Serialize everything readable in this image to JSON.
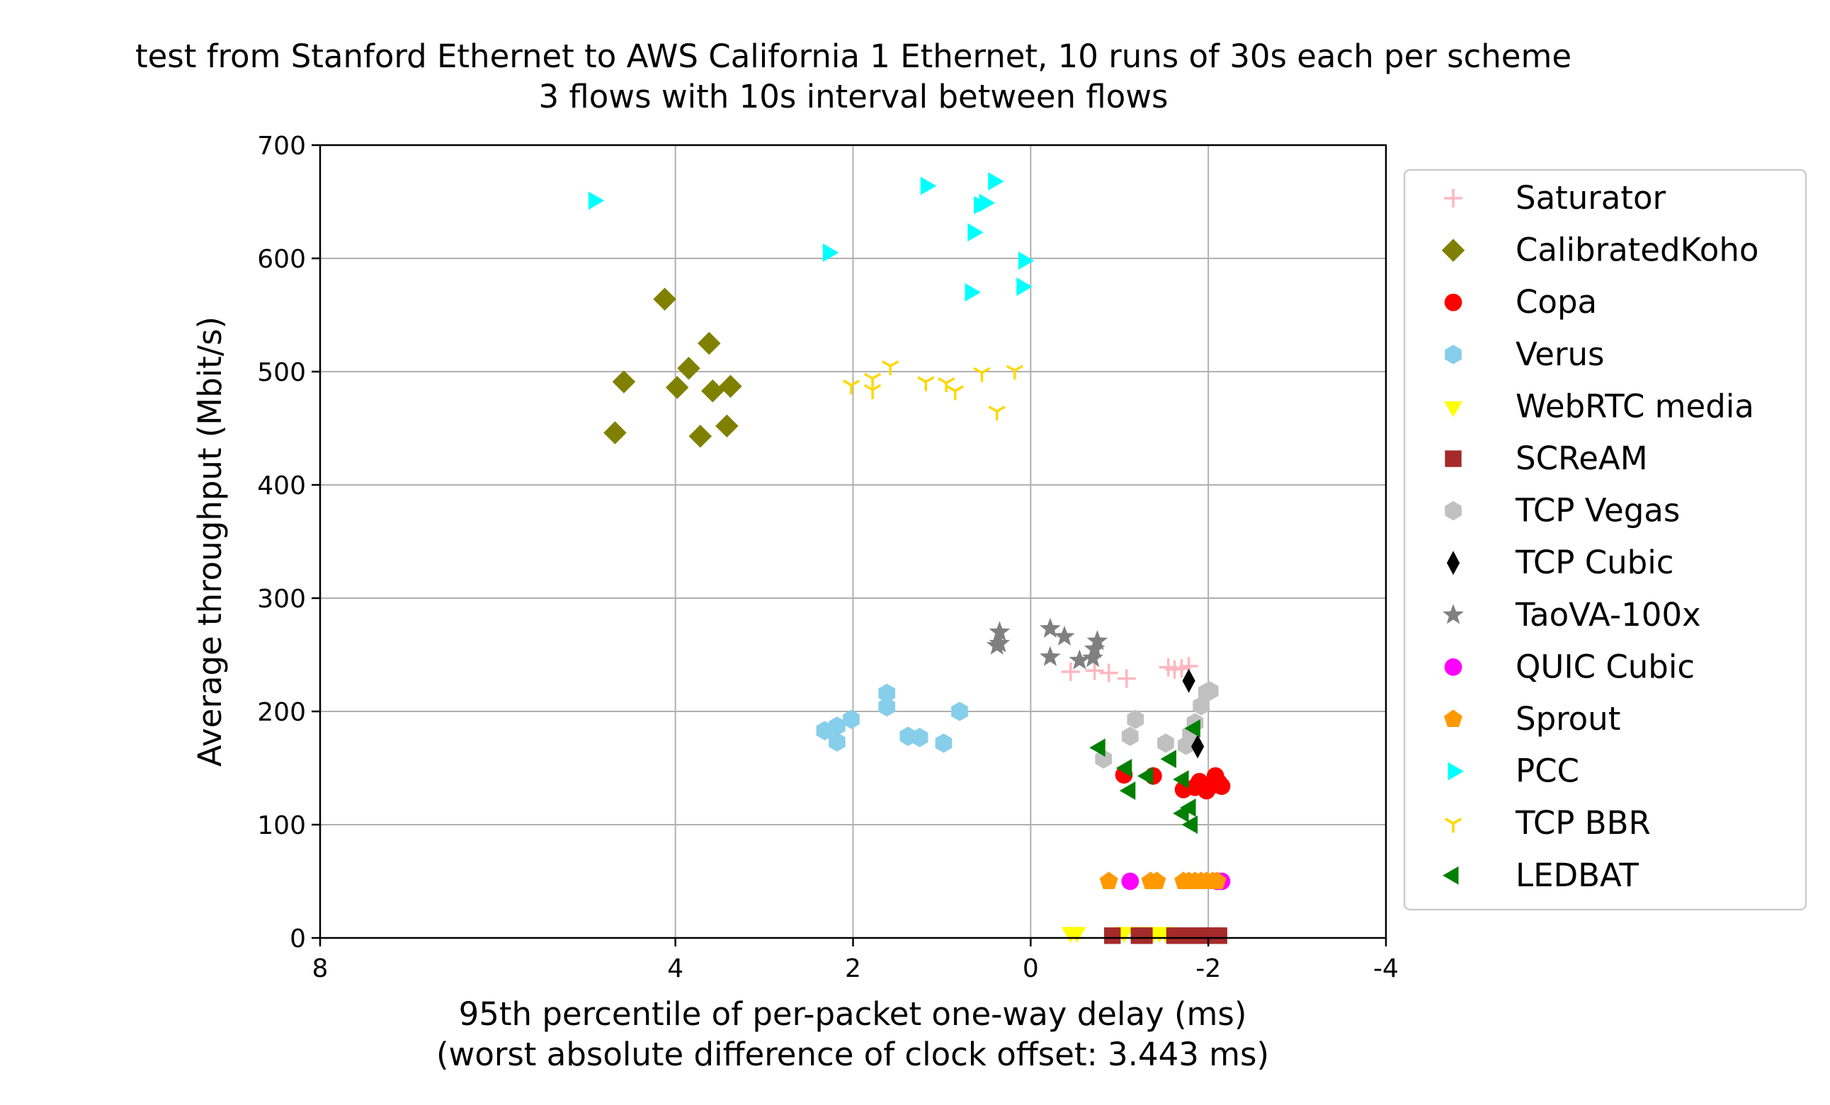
{
  "chart_data": {
    "type": "scatter",
    "title": "test from Stanford Ethernet to AWS California 1 Ethernet, 10 runs of 30s each per scheme",
    "subtitle": "3 flows with 10s interval between flows",
    "xlabel": "95th percentile of per-packet one-way delay (ms)",
    "xlabel2": "(worst absolute difference of clock offset: 3.443 ms)",
    "ylabel": "Average throughput (Mbit/s)",
    "xlim": [
      8,
      -4
    ],
    "ylim": [
      0,
      700
    ],
    "x_ticks": [
      "8",
      "4",
      "2",
      "0",
      "-2",
      "-4"
    ],
    "x_tick_values": [
      8,
      4,
      2,
      0,
      -2,
      -4
    ],
    "y_ticks": [
      "0",
      "100",
      "200",
      "300",
      "400",
      "500",
      "600",
      "700"
    ],
    "y_tick_values": [
      0,
      100,
      200,
      300,
      400,
      500,
      600,
      700
    ],
    "grid": true,
    "legend_position": "right",
    "series": [
      {
        "name": "Saturator",
        "marker": "plus",
        "color": "#ffb6c1",
        "points": [
          [
            -0.45,
            235
          ],
          [
            -0.72,
            236
          ],
          [
            -0.88,
            234
          ],
          [
            -1.08,
            229
          ],
          [
            -1.55,
            239
          ],
          [
            -1.62,
            237
          ],
          [
            -1.7,
            238
          ],
          [
            -1.78,
            240
          ]
        ]
      },
      {
        "name": "CalibratedKoho",
        "marker": "diamond",
        "color": "#808000",
        "points": [
          [
            4.12,
            564
          ],
          [
            4.58,
            491
          ],
          [
            3.85,
            503
          ],
          [
            3.98,
            486
          ],
          [
            3.62,
            525
          ],
          [
            3.58,
            483
          ],
          [
            3.38,
            487
          ],
          [
            4.68,
            446
          ],
          [
            3.72,
            443
          ],
          [
            3.42,
            452
          ]
        ]
      },
      {
        "name": "Copa",
        "marker": "circle",
        "color": "#ff0000",
        "points": [
          [
            -1.05,
            144
          ],
          [
            -1.38,
            143
          ],
          [
            -1.72,
            131
          ],
          [
            -1.85,
            133
          ],
          [
            -1.9,
            138
          ],
          [
            -1.98,
            130
          ],
          [
            -2.05,
            135
          ],
          [
            -2.08,
            143
          ],
          [
            -2.12,
            137
          ],
          [
            -2.15,
            134
          ]
        ]
      },
      {
        "name": "Verus",
        "marker": "hexagon",
        "color": "#87ceeb",
        "points": [
          [
            2.32,
            183
          ],
          [
            2.18,
            187
          ],
          [
            2.18,
            173
          ],
          [
            2.02,
            193
          ],
          [
            1.62,
            216
          ],
          [
            1.62,
            204
          ],
          [
            1.38,
            178
          ],
          [
            1.25,
            177
          ],
          [
            0.98,
            172
          ],
          [
            0.8,
            200
          ]
        ]
      },
      {
        "name": "WebRTC media",
        "marker": "triangle-down",
        "color": "#ffff00",
        "points": [
          [
            -0.45,
            5
          ],
          [
            -0.52,
            5
          ],
          [
            -1.05,
            5
          ],
          [
            -1.18,
            5
          ],
          [
            -1.25,
            5
          ],
          [
            -1.32,
            5
          ],
          [
            -1.38,
            5
          ],
          [
            -1.45,
            5
          ],
          [
            -1.52,
            5
          ]
        ]
      },
      {
        "name": "SCReAM",
        "marker": "square",
        "color": "#a52a2a",
        "points": [
          [
            -0.92,
            2
          ],
          [
            -1.22,
            2
          ],
          [
            -1.28,
            2
          ],
          [
            -1.62,
            2
          ],
          [
            -1.72,
            2
          ],
          [
            -1.82,
            2
          ],
          [
            -1.9,
            2
          ],
          [
            -1.98,
            2
          ],
          [
            -2.05,
            2
          ],
          [
            -2.12,
            2
          ]
        ]
      },
      {
        "name": "TCP Vegas",
        "marker": "hexagon",
        "color": "#c0c0c0",
        "points": [
          [
            -0.82,
            158
          ],
          [
            -1.12,
            178
          ],
          [
            -1.18,
            193
          ],
          [
            -1.52,
            172
          ],
          [
            -1.75,
            170
          ],
          [
            -1.85,
            190
          ],
          [
            -1.92,
            205
          ],
          [
            -1.98,
            217
          ],
          [
            -2.02,
            218
          ],
          [
            -1.8,
            180
          ]
        ]
      },
      {
        "name": "TCP Cubic",
        "marker": "thin-diamond",
        "color": "#000000",
        "points": [
          [
            -1.78,
            227
          ],
          [
            -1.88,
            169
          ]
        ]
      },
      {
        "name": "TaoVA-100x",
        "marker": "star",
        "color": "#808080",
        "points": [
          [
            0.38,
            258
          ],
          [
            0.35,
            270
          ],
          [
            -0.22,
            273
          ],
          [
            -0.22,
            248
          ],
          [
            -0.38,
            266
          ],
          [
            -0.55,
            245
          ],
          [
            -0.7,
            247
          ],
          [
            -0.72,
            255
          ],
          [
            -0.75,
            262
          ],
          [
            0.35,
            260
          ]
        ]
      },
      {
        "name": "QUIC Cubic",
        "marker": "circle",
        "color": "#ff00ff",
        "points": [
          [
            -1.12,
            50
          ],
          [
            -2.1,
            50
          ],
          [
            -2.15,
            50
          ]
        ]
      },
      {
        "name": "Sprout",
        "marker": "pentagon",
        "color": "#ff9900",
        "points": [
          [
            -0.88,
            50
          ],
          [
            -1.35,
            50
          ],
          [
            -1.42,
            50
          ],
          [
            -1.72,
            50
          ],
          [
            -1.78,
            50
          ],
          [
            -1.85,
            50
          ],
          [
            -1.92,
            50
          ],
          [
            -1.98,
            50
          ],
          [
            -2.05,
            50
          ],
          [
            -2.1,
            50
          ]
        ]
      },
      {
        "name": "PCC",
        "marker": "triangle-right",
        "color": "#00ffff",
        "points": [
          [
            4.92,
            651
          ],
          [
            2.28,
            605
          ],
          [
            1.18,
            664
          ],
          [
            0.42,
            668
          ],
          [
            0.52,
            649
          ],
          [
            0.58,
            647
          ],
          [
            0.65,
            623
          ],
          [
            0.08,
            598
          ],
          [
            0.68,
            570
          ],
          [
            0.1,
            575
          ]
        ]
      },
      {
        "name": "TCP BBR",
        "marker": "tri-down",
        "color": "#ffd700",
        "points": [
          [
            2.02,
            488
          ],
          [
            1.78,
            494
          ],
          [
            1.78,
            484
          ],
          [
            1.58,
            505
          ],
          [
            1.18,
            491
          ],
          [
            0.95,
            490
          ],
          [
            0.85,
            483
          ],
          [
            0.55,
            499
          ],
          [
            0.38,
            465
          ],
          [
            0.18,
            501
          ]
        ]
      },
      {
        "name": "LEDBAT",
        "marker": "triangle-left",
        "color": "#008000",
        "points": [
          [
            -0.78,
            168
          ],
          [
            -1.08,
            150
          ],
          [
            -1.12,
            130
          ],
          [
            -1.32,
            143
          ],
          [
            -1.58,
            158
          ],
          [
            -1.72,
            140
          ],
          [
            -1.72,
            110
          ],
          [
            -1.8,
            115
          ],
          [
            -1.82,
            100
          ],
          [
            -1.85,
            185
          ]
        ]
      }
    ]
  }
}
